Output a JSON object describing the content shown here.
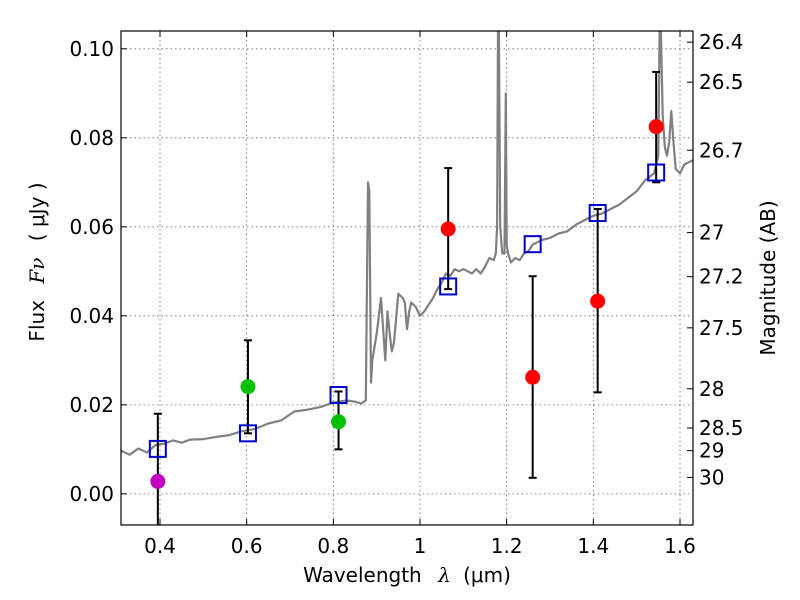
{
  "chart_data": {
    "type": "scatter",
    "xlabel": "Wavelength",
    "xlabel_symbol": "λ",
    "xlabel_unit": "(μm)",
    "ylabel": "Flux",
    "ylabel_symbol": "Fν",
    "ylabel_unit": "( μJy )",
    "y2label": "Magnitude (AB)",
    "xlim": [
      0.31,
      1.63
    ],
    "ylim": [
      -0.007,
      0.104
    ],
    "grid": true,
    "x_ticks": [
      0.4,
      0.6,
      0.8,
      1.0,
      1.2,
      1.4,
      1.6
    ],
    "x_tick_labels": [
      "0.4",
      "0.6",
      "0.8",
      "1",
      "1.2",
      "1.4",
      "1.6"
    ],
    "y_ticks": [
      0.0,
      0.02,
      0.04,
      0.06,
      0.08,
      0.1
    ],
    "y_tick_labels": [
      "0.00",
      "0.02",
      "0.04",
      "0.06",
      "0.08",
      "0.10"
    ],
    "y2_ticks": [
      {
        "label": "26.4",
        "flux": 0.1015
      },
      {
        "label": "26.5",
        "flux": 0.0925
      },
      {
        "label": "26.7",
        "flux": 0.0772
      },
      {
        "label": "27",
        "flux": 0.0587
      },
      {
        "label": "27.2",
        "flux": 0.0488
      },
      {
        "label": "27.5",
        "flux": 0.0373
      },
      {
        "label": "28",
        "flux": 0.0236
      },
      {
        "label": "28.5",
        "flux": 0.0148
      },
      {
        "label": "29",
        "flux": 0.0097
      },
      {
        "label": "30",
        "flux": 0.0037
      }
    ],
    "colors": {
      "model": "#808080",
      "model_points": "#0000cc",
      "purple": "#bf00bf",
      "green": "#00c000",
      "red": "#ff0000",
      "errorbar": "#000000"
    },
    "model_points": {
      "x": [
        0.395,
        0.603,
        0.812,
        1.065,
        1.26,
        1.41,
        1.545
      ],
      "y": [
        0.0101,
        0.0136,
        0.0222,
        0.0466,
        0.0561,
        0.0631,
        0.0722
      ]
    },
    "observed_points": [
      {
        "x": 0.395,
        "y": 0.0028,
        "err_low": 0.01,
        "err_high": 0.0152,
        "color": "purple"
      },
      {
        "x": 0.603,
        "y": 0.0241,
        "err_low": 0.0105,
        "err_high": 0.0104,
        "color": "green"
      },
      {
        "x": 0.812,
        "y": 0.0162,
        "err_low": 0.0062,
        "err_high": 0.0068,
        "color": "green"
      },
      {
        "x": 1.065,
        "y": 0.0595,
        "err_low": 0.0135,
        "err_high": 0.0137,
        "color": "red"
      },
      {
        "x": 1.26,
        "y": 0.0262,
        "err_low": 0.0226,
        "err_high": 0.0227,
        "color": "red"
      },
      {
        "x": 1.41,
        "y": 0.0433,
        "err_low": 0.0205,
        "err_high": 0.0207,
        "color": "red"
      },
      {
        "x": 1.545,
        "y": 0.0825,
        "err_low": 0.0125,
        "err_high": 0.0123,
        "color": "red"
      }
    ],
    "model_spectrum": {
      "x": [
        0.31,
        0.33,
        0.35,
        0.37,
        0.39,
        0.41,
        0.43,
        0.45,
        0.47,
        0.5,
        0.53,
        0.56,
        0.59,
        0.62,
        0.65,
        0.68,
        0.71,
        0.74,
        0.77,
        0.8,
        0.83,
        0.85,
        0.865,
        0.875,
        0.88,
        0.883,
        0.887,
        0.89,
        0.9,
        0.91,
        0.92,
        0.925,
        0.93,
        0.935,
        0.94,
        0.95,
        0.96,
        0.965,
        0.97,
        0.975,
        0.98,
        0.99,
        1.0,
        1.01,
        1.02,
        1.03,
        1.04,
        1.05,
        1.06,
        1.07,
        1.08,
        1.09,
        1.1,
        1.11,
        1.12,
        1.13,
        1.14,
        1.15,
        1.16,
        1.17,
        1.175,
        1.178,
        1.18,
        1.182,
        1.185,
        1.19,
        1.195,
        1.198,
        1.2,
        1.203,
        1.21,
        1.22,
        1.23,
        1.24,
        1.25,
        1.26,
        1.28,
        1.3,
        1.32,
        1.34,
        1.36,
        1.38,
        1.4,
        1.42,
        1.44,
        1.46,
        1.48,
        1.5,
        1.52,
        1.54,
        1.55,
        1.553,
        1.556,
        1.56,
        1.565,
        1.57,
        1.575,
        1.58,
        1.585,
        1.59,
        1.6,
        1.61,
        1.62,
        1.63
      ],
      "y": [
        0.0097,
        0.0088,
        0.0102,
        0.0093,
        0.011,
        0.0113,
        0.012,
        0.0115,
        0.0122,
        0.0123,
        0.0128,
        0.0132,
        0.0141,
        0.0146,
        0.0158,
        0.0165,
        0.0185,
        0.0189,
        0.0195,
        0.0205,
        0.021,
        0.0207,
        0.0203,
        0.021,
        0.07,
        0.068,
        0.025,
        0.03,
        0.036,
        0.044,
        0.03,
        0.041,
        0.036,
        0.032,
        0.034,
        0.045,
        0.044,
        0.043,
        0.037,
        0.041,
        0.043,
        0.042,
        0.04,
        0.041,
        0.0425,
        0.044,
        0.046,
        0.0475,
        0.0495,
        0.049,
        0.0505,
        0.05,
        0.0505,
        0.05,
        0.0495,
        0.0505,
        0.0495,
        0.051,
        0.053,
        0.0525,
        0.054,
        0.06,
        0.104,
        0.104,
        0.06,
        0.054,
        0.054,
        0.09,
        0.056,
        0.054,
        0.052,
        0.053,
        0.0525,
        0.054,
        0.0545,
        0.056,
        0.057,
        0.0575,
        0.0585,
        0.059,
        0.0605,
        0.0615,
        0.0625,
        0.063,
        0.064,
        0.065,
        0.0665,
        0.068,
        0.0705,
        0.072,
        0.076,
        0.104,
        0.104,
        0.085,
        0.078,
        0.076,
        0.079,
        0.086,
        0.079,
        0.073,
        0.072,
        0.074,
        0.0745,
        0.075
      ]
    }
  }
}
